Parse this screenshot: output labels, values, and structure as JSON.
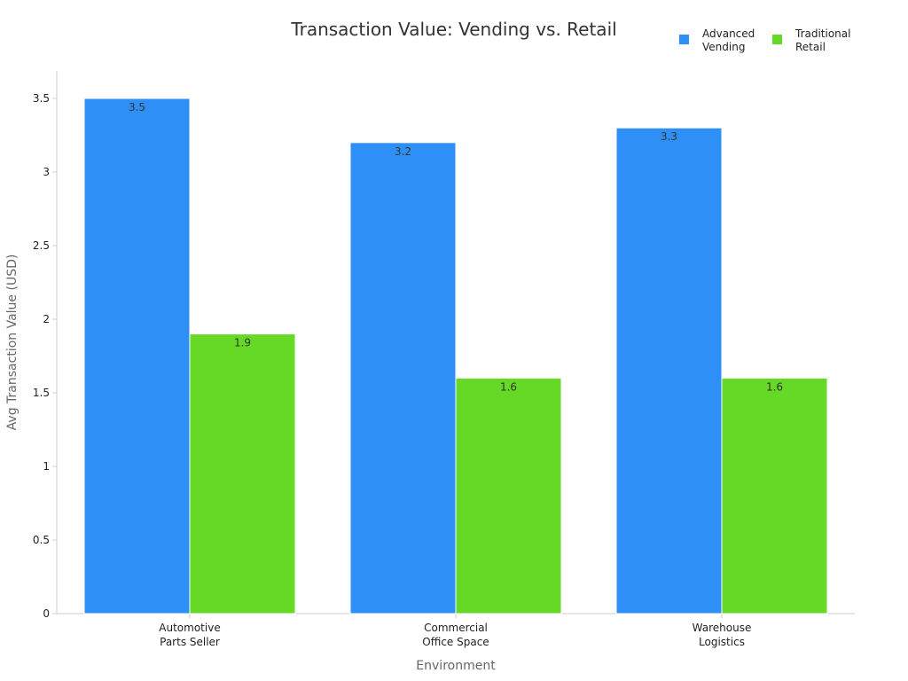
{
  "chart_data": {
    "type": "bar",
    "title": "Transaction Value: Vending vs. Retail",
    "xlabel": "Environment",
    "ylabel": "Avg Transaction Value (USD)",
    "ylim": [
      0,
      3.7
    ],
    "yticks": [
      0,
      0.5,
      1,
      1.5,
      2,
      2.5,
      3,
      3.5
    ],
    "ytick_labels": [
      "0",
      "0.5",
      "1",
      "1.5",
      "2",
      "2.5",
      "3",
      "3.5"
    ],
    "categories": [
      [
        "Automotive",
        "Parts Seller"
      ],
      [
        "Commercial",
        "Office Space"
      ],
      [
        "Warehouse",
        "Logistics"
      ]
    ],
    "series": [
      {
        "name": [
          "Advanced",
          "Vending"
        ],
        "color": "#2e90f7",
        "values": [
          3.5,
          3.2,
          3.3
        ],
        "labels": [
          "3.5",
          "3.2",
          "3.3"
        ]
      },
      {
        "name": [
          "Traditional",
          "Retail"
        ],
        "color": "#66d926",
        "values": [
          1.9,
          1.6,
          1.6
        ],
        "labels": [
          "1.9",
          "1.6",
          "1.6"
        ]
      }
    ],
    "legend_position": "top-right",
    "grid": false
  }
}
